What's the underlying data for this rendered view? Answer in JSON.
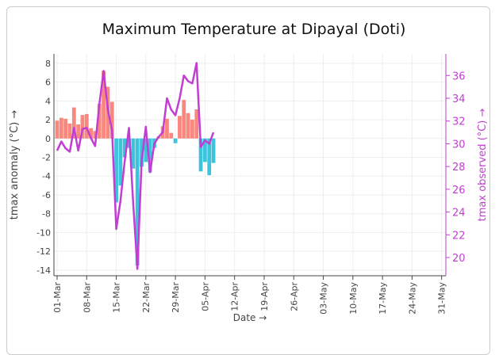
{
  "chart_data": {
    "type": "bar-line",
    "title": "Maximum Temperature at Dipayal (Doti)",
    "x_label": "Date →",
    "y_label": "tmax anomaly (°C) →",
    "y2_label": "tmax observed (°C) →",
    "x": [
      0,
      1,
      2,
      3,
      4,
      5,
      6,
      7,
      8,
      9,
      10,
      11,
      12,
      13,
      14,
      15,
      16,
      17,
      18,
      19,
      20,
      21,
      22,
      23,
      24,
      25,
      26,
      27,
      28,
      29,
      30,
      31,
      32,
      33,
      34,
      35,
      36,
      37
    ],
    "series": [
      {
        "color_positive": "#f8877e",
        "color_negative": "#3ec3dc",
        "values": [
          1.9,
          2.2,
          2.1,
          1.6,
          3.3,
          1.5,
          2.5,
          2.6,
          1.1,
          0.8,
          3.7,
          7.2,
          5.5,
          3.9,
          -6.8,
          -5.0,
          -2.0,
          -1.0,
          -3.2,
          -13.5,
          -3.0,
          -2.5,
          -3.6,
          -1.0,
          0.2,
          1.3,
          2.1,
          0.6,
          -0.5,
          2.4,
          4.1,
          2.7,
          2.0,
          3.1,
          -3.5,
          -2.5,
          -3.9,
          -2.6
        ]
      },
      {
        "type": "line",
        "axis": "y2",
        "color": "#c23ed3",
        "values": [
          29.4,
          30.2,
          29.6,
          29.3,
          31.4,
          29.4,
          31.3,
          31.4,
          30.5,
          29.8,
          33.5,
          36.4,
          33.0,
          31.2,
          22.5,
          25.0,
          28.5,
          31.4,
          24.8,
          19.0,
          28.5,
          31.5,
          27.5,
          30.0,
          30.6,
          31.0,
          34.0,
          33.0,
          32.5,
          34.0,
          36.0,
          35.5,
          35.3,
          37.1,
          29.7,
          30.3,
          30.0,
          31.0
        ]
      }
    ],
    "xlim": [
      -0.75,
      92
    ],
    "xticks": [
      {
        "value": 0,
        "label": "01-Mar"
      },
      {
        "value": 7,
        "label": "08-Mar"
      },
      {
        "value": 14,
        "label": "15-Mar"
      },
      {
        "value": 21,
        "label": "22-Mar"
      },
      {
        "value": 28,
        "label": "29-Mar"
      },
      {
        "value": 35,
        "label": "05-Apr"
      },
      {
        "value": 42,
        "label": "12-Apr"
      },
      {
        "value": 49,
        "label": "19-Apr"
      },
      {
        "value": 56,
        "label": "26-Apr"
      },
      {
        "value": 63,
        "label": "03-May"
      },
      {
        "value": 70,
        "label": "10-May"
      },
      {
        "value": 77,
        "label": "17-May"
      },
      {
        "value": 84,
        "label": "24-May"
      },
      {
        "value": 91,
        "label": "31-May"
      }
    ],
    "ylim": [
      -14.6,
      9
    ],
    "yticks": [
      -14,
      -12,
      -10,
      -8,
      -6,
      -4,
      -2,
      0,
      2,
      4,
      6,
      8
    ],
    "y2lim": [
      18.4,
      37.9
    ],
    "y2ticks": [
      20,
      22,
      24,
      26,
      28,
      30,
      32,
      34,
      36
    ],
    "grid": true
  }
}
